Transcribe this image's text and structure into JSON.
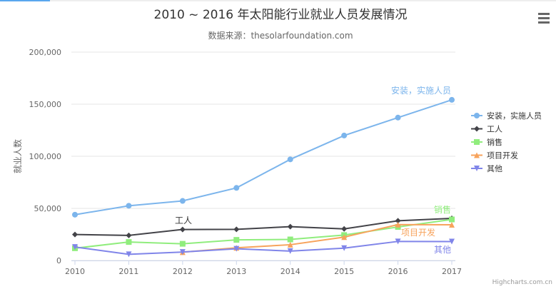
{
  "menu_icon": "hamburger-menu-icon",
  "credits": "Highcharts.com.cn",
  "chart_data": {
    "type": "line",
    "title": "2010 ~ 2016 年太阳能行业就业人员发展情况",
    "subtitle": "数据来源：thesolarfoundation.com",
    "xlabel": "",
    "ylabel": "就业人数",
    "x": [
      2010,
      2011,
      2012,
      2013,
      2014,
      2015,
      2016,
      2017
    ],
    "ylim": [
      0,
      200000
    ],
    "yticks": [
      0,
      50000,
      100000,
      150000,
      200000
    ],
    "ytick_labels": [
      "0",
      "50,000",
      "100,000",
      "150,000",
      "200,000"
    ],
    "grid": true,
    "legend": "right",
    "series": [
      {
        "name": "安装，实施人员",
        "color": "#7cb5ec",
        "marker": "circle",
        "label": "安装，实施人员",
        "values": [
          43934,
          52503,
          57177,
          69658,
          97031,
          119931,
          137133,
          154175
        ]
      },
      {
        "name": "工人",
        "color": "#434348",
        "marker": "diamond",
        "label": "工人",
        "values": [
          24916,
          24064,
          29742,
          29851,
          32490,
          30282,
          38121,
          40434
        ]
      },
      {
        "name": "销售",
        "color": "#90ed7d",
        "marker": "square",
        "label": "销售",
        "values": [
          11744,
          17722,
          16005,
          19771,
          20185,
          24377,
          32147,
          39387
        ]
      },
      {
        "name": "项目开发",
        "color": "#f7a35c",
        "marker": "triangle",
        "label": "项目开发",
        "values": [
          null,
          null,
          7988,
          12169,
          15112,
          22452,
          34400,
          34227
        ]
      },
      {
        "name": "其他",
        "color": "#8085e9",
        "marker": "triangle-down",
        "label": "其他",
        "values": [
          12908,
          5948,
          8105,
          11248,
          8989,
          11816,
          18274,
          18111
        ]
      }
    ]
  }
}
